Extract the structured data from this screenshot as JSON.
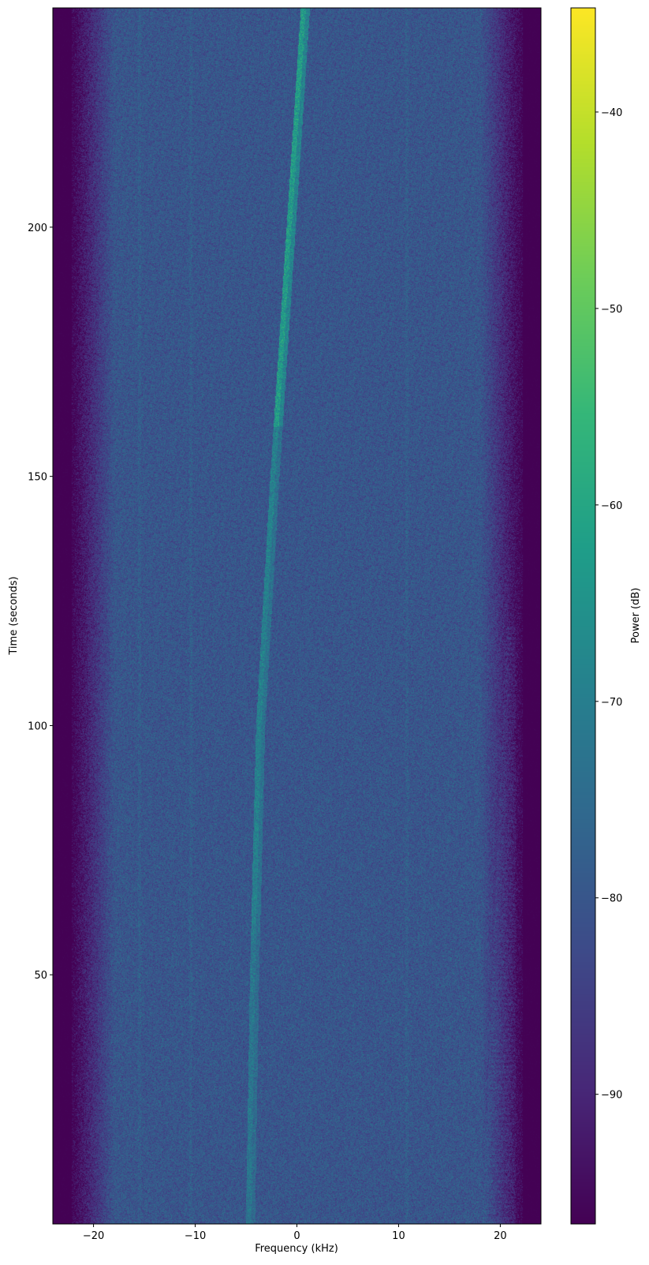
{
  "chart_data": {
    "type": "heatmap",
    "subtype": "spectrogram",
    "xlabel": "Frequency (kHz)",
    "ylabel": "Time (seconds)",
    "colorbar_label": "Power (dB)",
    "colormap": "viridis",
    "xlim": [
      -24,
      24
    ],
    "ylim": [
      0,
      244
    ],
    "clim": [
      -96.6,
      -34.7
    ],
    "xticks": [
      -20,
      -10,
      0,
      10,
      20
    ],
    "xtick_labels": [
      "−20",
      "−10",
      "0",
      "10",
      "20"
    ],
    "yticks": [
      50,
      100,
      150,
      200
    ],
    "ytick_labels": [
      "50",
      "100",
      "150",
      "200"
    ],
    "cticks": [
      -90,
      -80,
      -70,
      -60,
      -50,
      -40
    ],
    "ctick_labels": [
      "−90",
      "−80",
      "−70",
      "−60",
      "−50",
      "−40"
    ],
    "noise_floor_db": -80,
    "band_edge_khz": 21,
    "signal_track": {
      "points": [
        [
          0,
          -4.8
        ],
        [
          50,
          -4.4
        ],
        [
          100,
          -3.8
        ],
        [
          150,
          -2.4
        ],
        [
          200,
          -0.8
        ],
        [
          244,
          0.6
        ]
      ],
      "peak_db": -58
    },
    "faint_lines_khz": [
      10.8,
      -10.5,
      -15.5
    ],
    "grid": false
  }
}
